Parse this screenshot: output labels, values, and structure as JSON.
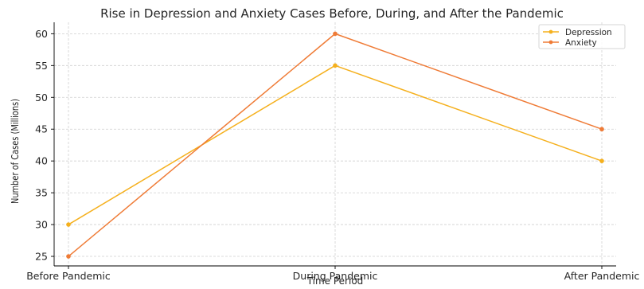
{
  "chart_data": {
    "type": "line",
    "title": "Rise in Depression and Anxiety Cases Before, During, and After the Pandemic",
    "xlabel": "Time Period",
    "ylabel": "Number of Cases (Millions)",
    "categories": [
      "Before Pandemic",
      "During Pandemic",
      "After Pandemic"
    ],
    "ylim": [
      23.5,
      61.8
    ],
    "yticks": [
      25,
      30,
      35,
      40,
      45,
      50,
      55,
      60
    ],
    "grid": true,
    "legend_position": "top-right",
    "series": [
      {
        "name": "Depression",
        "values": [
          30,
          55,
          40
        ],
        "color": "#f5b01d"
      },
      {
        "name": "Anxiety",
        "values": [
          25,
          60,
          45
        ],
        "color": "#ef7b36"
      }
    ]
  }
}
